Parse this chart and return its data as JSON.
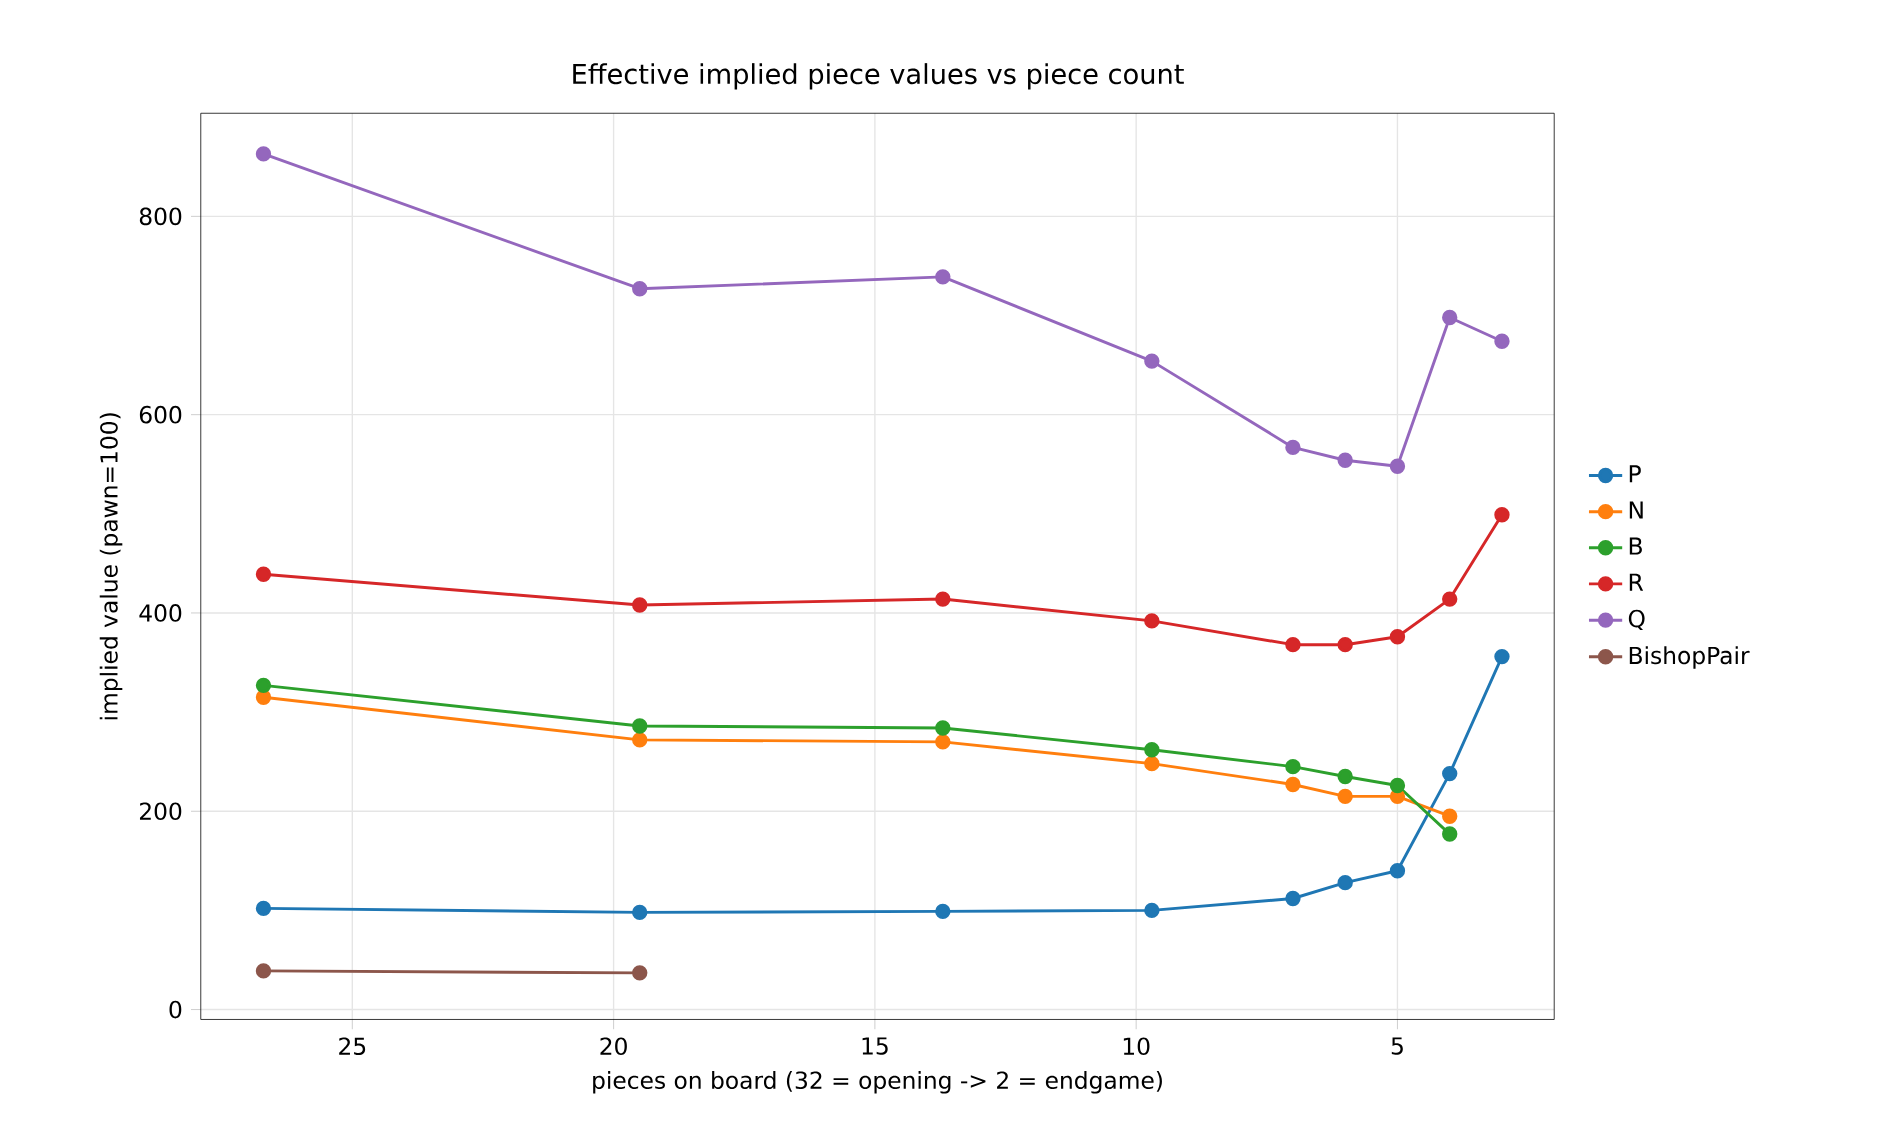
{
  "chart_data": {
    "type": "line",
    "title": "Effective implied piece values vs piece count",
    "xlabel": "pieces on board  (32 = opening  ->  2 = endgame)",
    "ylabel": "implied value (pawn=100)",
    "x": [
      26.7,
      19.5,
      13.7,
      9.7,
      7,
      6,
      5,
      4,
      3
    ],
    "series": [
      {
        "name": "P",
        "color": "#1f77b4",
        "values": [
          102,
          98,
          99,
          100,
          112,
          128,
          140,
          238,
          356
        ]
      },
      {
        "name": "N",
        "color": "#ff7f0e",
        "values": [
          315,
          272,
          270,
          248,
          227,
          215,
          215,
          195,
          null
        ]
      },
      {
        "name": "B",
        "color": "#2ca02c",
        "values": [
          327,
          286,
          284,
          262,
          245,
          235,
          226,
          177,
          null
        ]
      },
      {
        "name": "R",
        "color": "#d62728",
        "values": [
          439,
          408,
          414,
          392,
          368,
          368,
          376,
          414,
          499
        ]
      },
      {
        "name": "Q",
        "color": "#9467bd",
        "values": [
          863,
          727,
          739,
          654,
          567,
          554,
          548,
          698,
          674
        ]
      },
      {
        "name": "BishopPair",
        "color": "#8c564b",
        "values": [
          39,
          37,
          null,
          null,
          null,
          null,
          null,
          null,
          null
        ]
      }
    ],
    "xlim": [
      27.9,
      2.0
    ],
    "ylim": [
      -10,
      904
    ],
    "xticks": [
      25,
      20,
      15,
      10,
      5
    ],
    "yticks": [
      0,
      200,
      400,
      600,
      800
    ],
    "grid": true,
    "legend": "right",
    "marker": "circle",
    "line_style": "solid"
  }
}
